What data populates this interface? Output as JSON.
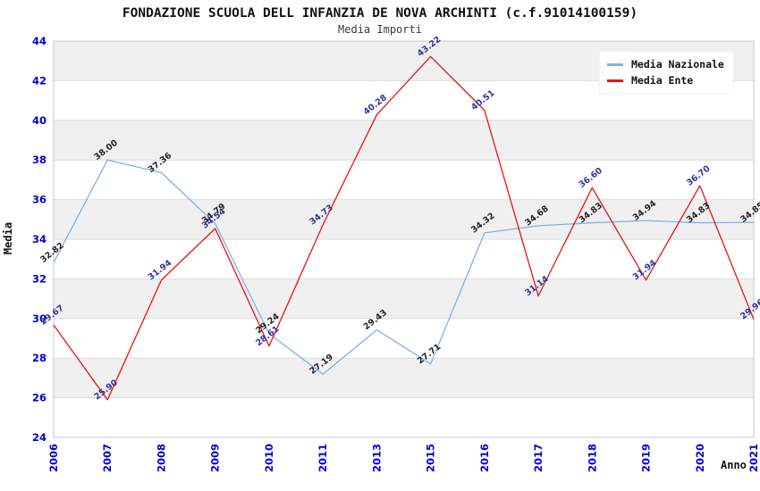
{
  "header": {
    "title": "FONDAZIONE SCUOLA DELL INFANZIA DE NOVA ARCHINTI (c.f.91014100159)",
    "subtitle": "Media Importi"
  },
  "legend": {
    "items": [
      {
        "label": "Media Nazionale",
        "color": "#7fb2e6"
      },
      {
        "label": "Media Ente",
        "color": "#ee1111"
      }
    ]
  },
  "chart_data": {
    "type": "line",
    "title": "FONDAZIONE SCUOLA DELL INFANZIA DE NOVA ARCHINTI (c.f.91014100159)",
    "subtitle": "Media Importi",
    "xlabel": "Anno",
    "ylabel": "Media",
    "categories": [
      "2006",
      "2007",
      "2008",
      "2009",
      "2010",
      "2011",
      "2013",
      "2015",
      "2016",
      "2017",
      "2018",
      "2019",
      "2020",
      "2021"
    ],
    "series": [
      {
        "name": "Media Nazionale",
        "color": "#7fb2e6",
        "label_color": "#222222",
        "values": [
          32.82,
          38.0,
          37.36,
          34.79,
          29.24,
          27.19,
          29.43,
          27.71,
          34.32,
          34.68,
          34.83,
          34.94,
          34.83,
          34.85
        ]
      },
      {
        "name": "Media Ente",
        "color": "#ee1111",
        "label_color": "#333399",
        "values": [
          29.67,
          25.9,
          31.94,
          34.54,
          28.61,
          34.73,
          40.28,
          43.22,
          40.51,
          31.14,
          36.6,
          31.94,
          36.7,
          29.96
        ]
      }
    ],
    "ylim": [
      24,
      44
    ],
    "ytick_step": 2,
    "value_labels_shown": true,
    "value_label_rotation_deg": -38,
    "xtick_rotation_deg": -90,
    "legend_position": "top-right",
    "grid": "horizontal gridlines with alternating gray/white bands",
    "colors": {
      "band_gray": "#f0f0f0",
      "band_white": "#ffffff",
      "gridline": "#dcdcdc",
      "plot_border": "#c9c9c9",
      "tick_label": "#0000d6",
      "background": "#ffffff"
    }
  }
}
